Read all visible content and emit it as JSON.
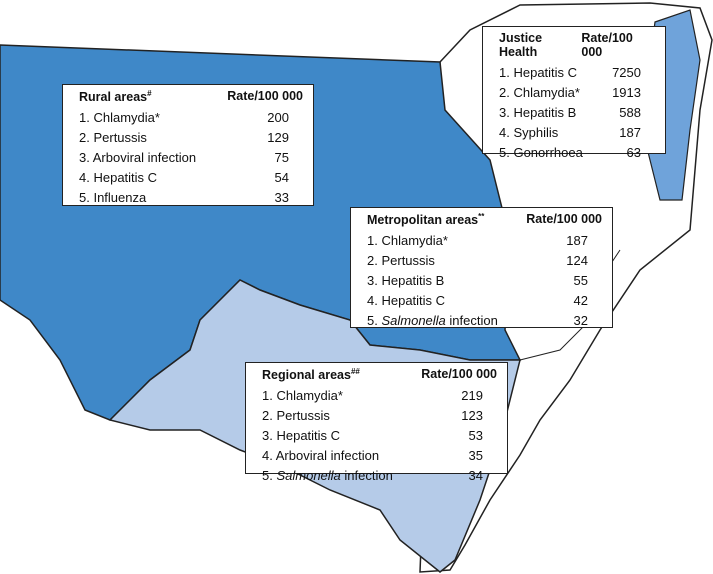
{
  "boxes": [
    {
      "title": "Rural areas",
      "mark": "#",
      "header": "Rate/100 000",
      "rows": [
        {
          "rank": "1.",
          "label": "Chlamydia*",
          "rate": 200
        },
        {
          "rank": "2.",
          "label": "Pertussis",
          "rate": 129
        },
        {
          "rank": "3.",
          "label": "Arboviral infection",
          "rate": 75
        },
        {
          "rank": "4.",
          "label": "Hepatitis C",
          "rate": 54
        },
        {
          "rank": "5.",
          "label": "Influenza",
          "rate": 33
        }
      ]
    },
    {
      "title": "Justice Health",
      "header": "Rate/100 000",
      "rows": [
        {
          "rank": "1.",
          "label": "Hepatitis C",
          "rate": 7250
        },
        {
          "rank": "2.",
          "label": "Chlamydia*",
          "rate": 1913
        },
        {
          "rank": "3.",
          "label": "Hepatitis B",
          "rate": 588
        },
        {
          "rank": "4.",
          "label": "Syphilis",
          "rate": 187
        },
        {
          "rank": "5.",
          "label": "Gonorrhoea",
          "rate": 63
        }
      ]
    },
    {
      "title": "Metropolitan areas",
      "mark": "**",
      "header": "Rate/100 000",
      "rows": [
        {
          "rank": "1.",
          "label": "Chlamydia*",
          "rate": 187
        },
        {
          "rank": "2.",
          "label": "Pertussis",
          "rate": 124
        },
        {
          "rank": "3.",
          "label": "Hepatitis B",
          "rate": 55
        },
        {
          "rank": "4.",
          "label": "Hepatitis C",
          "rate": 42
        },
        {
          "rank": "5.",
          "italic": "Salmonella",
          "label": "infection",
          "rate": 32
        }
      ]
    },
    {
      "title": "Regional areas",
      "mark": "##",
      "header": "Rate/100 000",
      "rows": [
        {
          "rank": "1.",
          "label": "Chlamydia*",
          "rate": 219
        },
        {
          "rank": "2.",
          "label": "Pertussis",
          "rate": 123
        },
        {
          "rank": "3.",
          "label": "Hepatitis C",
          "rate": 53
        },
        {
          "rank": "4.",
          "label": "Arboviral infection",
          "rate": 35
        },
        {
          "rank": "5.",
          "italic": "Salmonella",
          "label": "infection",
          "rate": 34
        }
      ]
    }
  ]
}
